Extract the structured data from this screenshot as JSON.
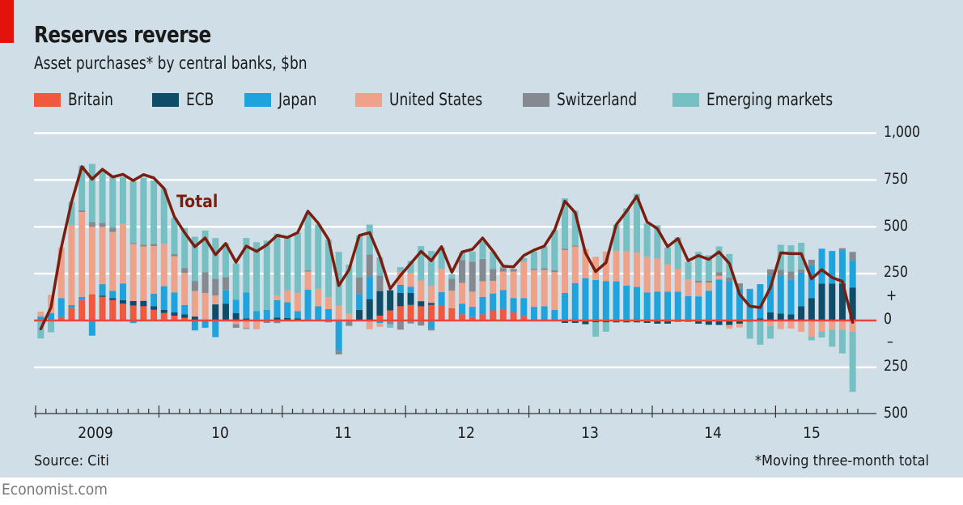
{
  "header": {
    "title": "Reserves reverse",
    "subtitle": "Asset purchases* by central banks, $bn"
  },
  "footer": {
    "source": "Source: Citi",
    "footnote": "*Moving three-month total",
    "brand": "Economist.com"
  },
  "chart_data": {
    "type": "bar",
    "stacked": true,
    "title": "Reserves reverse",
    "subtitle": "Asset purchases* by central banks, $bn",
    "xlabel": "",
    "ylabel": "$bn",
    "ylim": [
      -500,
      1000
    ],
    "grid": true,
    "legend_position": "top",
    "start_month": "2009-01",
    "x_tick_labels": [
      "2009",
      "10",
      "11",
      "12",
      "13",
      "14",
      "15"
    ],
    "y_ticks": [
      {
        "value": 1000,
        "label": "1,000"
      },
      {
        "value": 750,
        "label": "750"
      },
      {
        "value": 500,
        "label": "500"
      },
      {
        "value": 250,
        "label": "250"
      },
      {
        "value": 0,
        "label": "0"
      },
      {
        "value": -250,
        "label": "250"
      },
      {
        "value": -500,
        "label": "500"
      }
    ],
    "sign_labels": {
      "plus": "+",
      "minus": "–"
    },
    "series": [
      {
        "name": "Britain",
        "color": "#f0593e",
        "values": [
          0,
          0,
          19,
          66,
          109,
          140,
          126,
          109,
          90,
          80,
          76,
          57,
          40,
          26,
          14,
          0,
          0,
          0,
          0,
          0,
          0,
          0,
          0,
          0,
          0,
          0,
          0,
          0,
          0,
          0,
          0,
          0,
          0,
          26,
          54,
          76,
          83,
          76,
          83,
          80,
          66,
          33,
          19,
          33,
          54,
          61,
          43,
          23,
          0,
          0,
          0,
          0,
          0,
          0,
          0,
          0,
          0,
          0,
          0,
          0,
          0,
          0,
          0,
          0,
          0,
          0,
          0,
          0,
          0,
          0,
          0,
          0,
          0,
          0,
          0,
          0,
          0,
          0,
          0,
          0
        ]
      },
      {
        "name": "ECB",
        "color": "#0f4c67",
        "values": [
          0,
          0,
          0,
          0,
          0,
          0,
          7,
          10,
          19,
          24,
          29,
          19,
          17,
          17,
          19,
          21,
          4,
          86,
          90,
          40,
          11,
          0,
          0,
          16,
          14,
          11,
          0,
          0,
          0,
          0,
          0,
          57,
          114,
          131,
          107,
          71,
          64,
          27,
          11,
          0,
          0,
          0,
          0,
          0,
          0,
          0,
          0,
          0,
          0,
          0,
          0,
          -13,
          -13,
          -20,
          -10,
          -10,
          -10,
          -10,
          -10,
          -13,
          -17,
          -17,
          -7,
          -7,
          -17,
          -23,
          -24,
          -24,
          -17,
          -7,
          11,
          43,
          37,
          33,
          76,
          119,
          197,
          197,
          197,
          176
        ]
      },
      {
        "name": "Japan",
        "color": "#1ea3dc",
        "values": [
          21,
          40,
          100,
          17,
          17,
          -81,
          61,
          39,
          89,
          -14,
          0,
          67,
          126,
          107,
          50,
          -53,
          -39,
          -89,
          71,
          71,
          139,
          51,
          57,
          93,
          83,
          39,
          164,
          76,
          61,
          -160,
          0,
          83,
          119,
          -14,
          0,
          43,
          33,
          0,
          -43,
          71,
          0,
          57,
          54,
          93,
          90,
          101,
          77,
          96,
          73,
          76,
          57,
          147,
          200,
          226,
          216,
          211,
          209,
          186,
          179,
          150,
          154,
          154,
          154,
          130,
          129,
          159,
          219,
          209,
          169,
          166,
          183,
          197,
          203,
          186,
          179,
          176,
          186,
          174,
          179,
          143
        ]
      },
      {
        "name": "United States",
        "color": "#eea28a",
        "values": [
          26,
          97,
          271,
          426,
          453,
          361,
          306,
          314,
          317,
          304,
          290,
          254,
          226,
          193,
          171,
          136,
          143,
          47,
          0,
          -20,
          -40,
          -47,
          0,
          24,
          64,
          97,
          97,
          93,
          64,
          80,
          36,
          0,
          -47,
          -20,
          0,
          71,
          74,
          111,
          91,
          124,
          93,
          110,
          81,
          83,
          67,
          99,
          141,
          193,
          196,
          193,
          201,
          229,
          194,
          155,
          124,
          157,
          163,
          183,
          183,
          190,
          177,
          146,
          120,
          89,
          73,
          43,
          19,
          -20,
          -20,
          0,
          0,
          -30,
          -46,
          -43,
          -60,
          -86,
          -60,
          -50,
          -50,
          -60
        ]
      },
      {
        "name": "Switzerland",
        "color": "#858a91",
        "values": [
          0,
          0,
          0,
          0,
          9,
          24,
          21,
          23,
          0,
          6,
          10,
          11,
          0,
          11,
          26,
          54,
          110,
          90,
          71,
          -19,
          -5,
          0,
          -13,
          -14,
          0,
          0,
          7,
          0,
          -10,
          -21,
          -29,
          89,
          119,
          83,
          -20,
          -49,
          -16,
          -27,
          -10,
          0,
          64,
          123,
          160,
          120,
          64,
          19,
          14,
          0,
          7,
          10,
          10,
          7,
          6,
          0,
          0,
          0,
          0,
          0,
          0,
          0,
          0,
          0,
          0,
          0,
          10,
          10,
          20,
          20,
          29,
          3,
          0,
          33,
          31,
          43,
          17,
          29,
          0,
          0,
          10,
          47
        ]
      },
      {
        "name": "Emerging markets",
        "color": "#76bfc3",
        "values": [
          -96,
          -63,
          0,
          124,
          239,
          311,
          276,
          271,
          251,
          329,
          357,
          339,
          296,
          193,
          214,
          236,
          223,
          217,
          179,
          193,
          290,
          367,
          369,
          331,
          279,
          321,
          303,
          343,
          307,
          286,
          261,
          223,
          160,
          97,
          -19,
          24,
          64,
          183,
          186,
          114,
          24,
          39,
          54,
          94,
          93,
          10,
          0,
          21,
          93,
          116,
          214,
          269,
          186,
          0,
          -76,
          -50,
          140,
          229,
          314,
          179,
          177,
          90,
          169,
          93,
          154,
          136,
          137,
          126,
          0,
          -90,
          -129,
          -67,
          133,
          139,
          143,
          -20,
          -31,
          -90,
          -126,
          -321
        ]
      }
    ],
    "line": {
      "name": "Total",
      "color": "#7a1f0f",
      "values": [
        -45,
        70,
        390,
        632,
        821,
        754,
        807,
        766,
        780,
        747,
        779,
        761,
        704,
        554,
        469,
        394,
        440,
        351,
        411,
        311,
        397,
        369,
        404,
        454,
        443,
        469,
        583,
        519,
        433,
        186,
        271,
        454,
        469,
        340,
        169,
        240,
        304,
        369,
        319,
        394,
        257,
        366,
        380,
        440,
        371,
        290,
        286,
        347,
        376,
        397,
        483,
        637,
        576,
        361,
        261,
        309,
        511,
        583,
        664,
        526,
        490,
        394,
        437,
        319,
        347,
        326,
        366,
        304,
        140,
        76,
        69,
        176,
        361,
        357,
        357,
        223,
        271,
        229,
        209,
        -10
      ]
    }
  }
}
